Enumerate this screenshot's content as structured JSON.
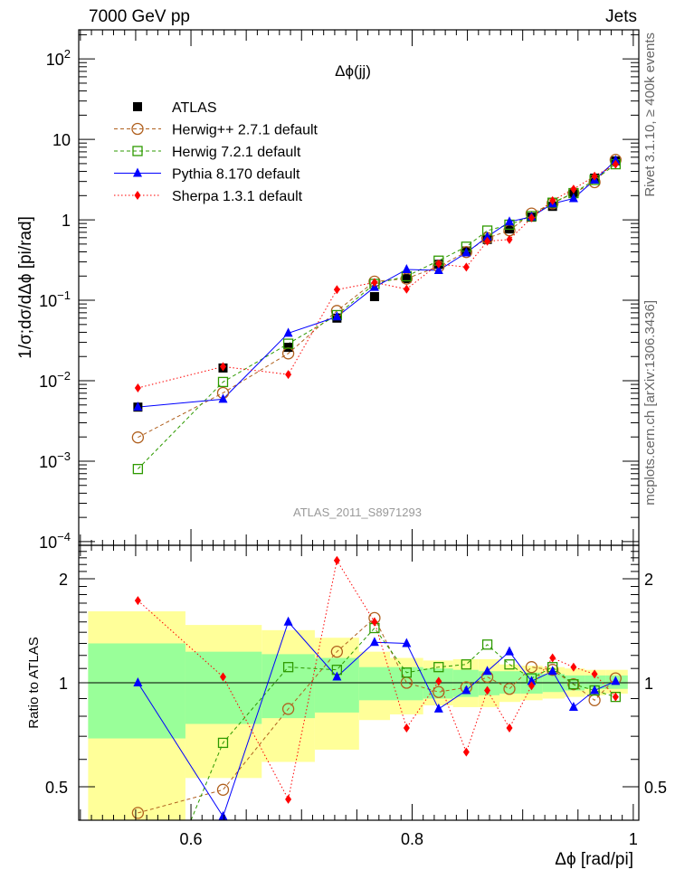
{
  "header": {
    "left": "7000 GeV pp",
    "right": "Jets"
  },
  "side_text": {
    "top": "Rivet 3.1.10, ≥ 400k events",
    "bottom": "mcplots.cern.ch [arXiv:1306.3436]"
  },
  "watermark": "ATLAS_2011_S8971293",
  "chart_data": [
    {
      "type": "line",
      "title": "Δϕ(jj)",
      "xlabel": "Δϕ [rad/pi]",
      "ylabel": "1/σ;dσ/dΔϕ [pi/rad]",
      "yscale": "log",
      "xlim": [
        0.4985,
        1.005
      ],
      "ylim": [
        9e-05,
        230
      ],
      "ytick_labels": [
        {
          "v": 100,
          "base": "10",
          "exp": "2"
        },
        {
          "v": 10,
          "base": "10",
          "exp": ""
        },
        {
          "v": 1,
          "base": "1",
          "exp": ""
        },
        {
          "v": 0.1,
          "base": "10",
          "exp": "−1"
        },
        {
          "v": 0.01,
          "base": "10",
          "exp": "−2"
        },
        {
          "v": 0.001,
          "base": "10",
          "exp": "−3"
        },
        {
          "v": 0.0001,
          "base": "10",
          "exp": "−4"
        }
      ],
      "legend_position": "top-left",
      "x": [
        0.552,
        0.629,
        0.688,
        0.732,
        0.766,
        0.795,
        0.824,
        0.849,
        0.868,
        0.888,
        0.908,
        0.927,
        0.946,
        0.965,
        0.984
      ],
      "atlas": {
        "name": "ATLAS",
        "values": [
          0.0047,
          0.0144,
          0.026,
          0.06,
          0.111,
          0.186,
          0.28,
          0.41,
          0.57,
          0.77,
          1.08,
          1.47,
          2.17,
          3.3,
          5.4
        ]
      },
      "series": [
        {
          "name": "Herwig++ 2.7.1 default",
          "color": "#b0601e",
          "marker": "open-circle",
          "line": "dashed"
        },
        {
          "name": "Herwig 7.2.1 default",
          "color": "#2e9a00",
          "marker": "open-square",
          "line": "dashed"
        },
        {
          "name": "Pythia 8.170 default",
          "color": "#0000ff",
          "marker": "triangle",
          "line": "solid"
        },
        {
          "name": "Sherpa 1.3.1 default",
          "color": "#ff0000",
          "marker": "diamond",
          "line": "dotted"
        }
      ]
    },
    {
      "type": "line",
      "ylabel": "Ratio to ATLAS",
      "xlabel": "Δϕ [rad/pi]",
      "yscale": "log",
      "ylim": [
        0.4,
        2.5
      ],
      "xlim": [
        0.4985,
        1.005
      ],
      "xtick_labels": [
        "0.6",
        "0.8",
        "1"
      ],
      "ytick_labels": [
        "2",
        "1",
        "0.5"
      ],
      "band_edges": [
        0.507,
        0.595,
        0.664,
        0.712,
        0.752,
        0.78,
        0.81,
        0.837,
        0.86,
        0.879,
        0.898,
        0.918,
        0.938,
        0.956,
        0.975,
        0.995
      ],
      "band_inner": {
        "color": "#99ff99",
        "lo": [
          0.69,
          0.76,
          0.79,
          0.82,
          0.89,
          0.89,
          0.9,
          0.91,
          0.92,
          0.93,
          0.93,
          0.94,
          0.95,
          0.96,
          0.96
        ],
        "hi": [
          1.3,
          1.23,
          1.21,
          1.18,
          1.11,
          1.11,
          1.1,
          1.09,
          1.08,
          1.08,
          1.07,
          1.06,
          1.05,
          1.05,
          1.05
        ]
      },
      "band_outer": {
        "color": "#ffff99",
        "lo": [
          0.3,
          0.53,
          0.59,
          0.64,
          0.78,
          0.81,
          0.86,
          0.85,
          0.85,
          0.88,
          0.89,
          0.9,
          0.91,
          0.92,
          0.93
        ],
        "hi": [
          1.61,
          1.47,
          1.42,
          1.35,
          1.23,
          1.18,
          1.16,
          1.17,
          1.17,
          1.13,
          1.12,
          1.11,
          1.1,
          1.09,
          1.09
        ]
      },
      "ratios": [
        [
          0.42,
          0.49,
          0.84,
          1.23,
          1.54,
          1.0,
          0.94,
          0.97,
          1.04,
          0.96,
          1.11,
          1.09,
          0.99,
          0.89,
          1.03
        ],
        [
          0.17,
          0.67,
          1.11,
          1.09,
          1.44,
          1.07,
          1.11,
          1.13,
          1.29,
          1.13,
          1.03,
          1.11,
          0.99,
          0.95,
          0.91
        ],
        [
          1.0,
          0.41,
          1.5,
          1.04,
          1.31,
          1.3,
          0.84,
          0.95,
          1.08,
          1.23,
          1.01,
          1.08,
          0.85,
          0.95,
          1.01
        ],
        [
          1.73,
          1.04,
          0.46,
          2.26,
          1.5,
          0.74,
          1.01,
          0.63,
          0.95,
          0.74,
          0.98,
          1.18,
          1.11,
          1.06,
          0.91
        ]
      ]
    }
  ]
}
